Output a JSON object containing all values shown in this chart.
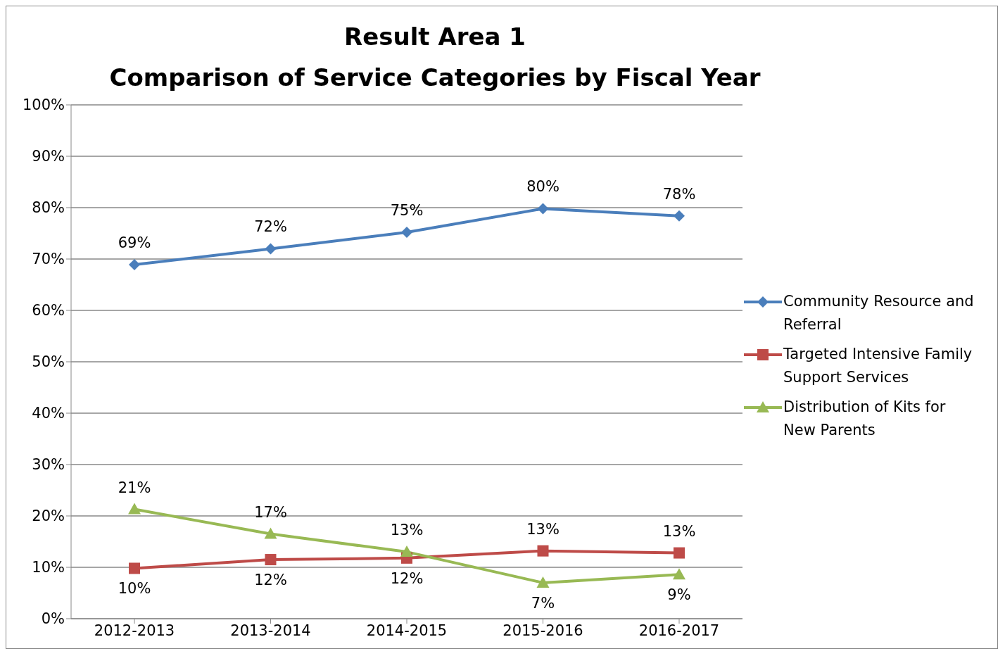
{
  "chart_data": {
    "type": "line",
    "title": "Result Area 1",
    "subtitle": "Comparison of Service Categories by Fiscal Year",
    "categories": [
      "2012-2013",
      "2013-2014",
      "2014-2015",
      "2015-2016",
      "2016-2017"
    ],
    "series": [
      {
        "name": "Community Resource and Referral",
        "color": "#4a7ebb",
        "marker": "diamond",
        "values": [
          68.9,
          72,
          75.2,
          79.8,
          78.4
        ],
        "value_labels": [
          "69%",
          "72%",
          "75%",
          "80%",
          "78%"
        ]
      },
      {
        "name": "Targeted Intensive Family Support Services",
        "color": "#be4b48",
        "marker": "square",
        "values": [
          9.8,
          11.5,
          11.8,
          13.2,
          12.8
        ],
        "value_labels": [
          "10%",
          "12%",
          "12%",
          "13%",
          "13%"
        ]
      },
      {
        "name": "Distribution of Kits for New Parents",
        "color": "#98b954",
        "marker": "triangle",
        "values": [
          21.3,
          16.5,
          13,
          7,
          8.6
        ],
        "value_labels": [
          "21%",
          "17%",
          "13%",
          "7%",
          "9%"
        ]
      }
    ],
    "ylim": [
      0,
      100
    ],
    "yticks": [
      {
        "value": 0,
        "label": "0%"
      },
      {
        "value": 10,
        "label": "10%"
      },
      {
        "value": 20,
        "label": "20%"
      },
      {
        "value": 30,
        "label": "30%"
      },
      {
        "value": 40,
        "label": "40%"
      },
      {
        "value": 50,
        "label": "50%"
      },
      {
        "value": 60,
        "label": "60%"
      },
      {
        "value": 70,
        "label": "70%"
      },
      {
        "value": 80,
        "label": "80%"
      },
      {
        "value": 90,
        "label": "90%"
      },
      {
        "value": 100,
        "label": "100%"
      }
    ],
    "grid": "y",
    "legend": "right"
  }
}
